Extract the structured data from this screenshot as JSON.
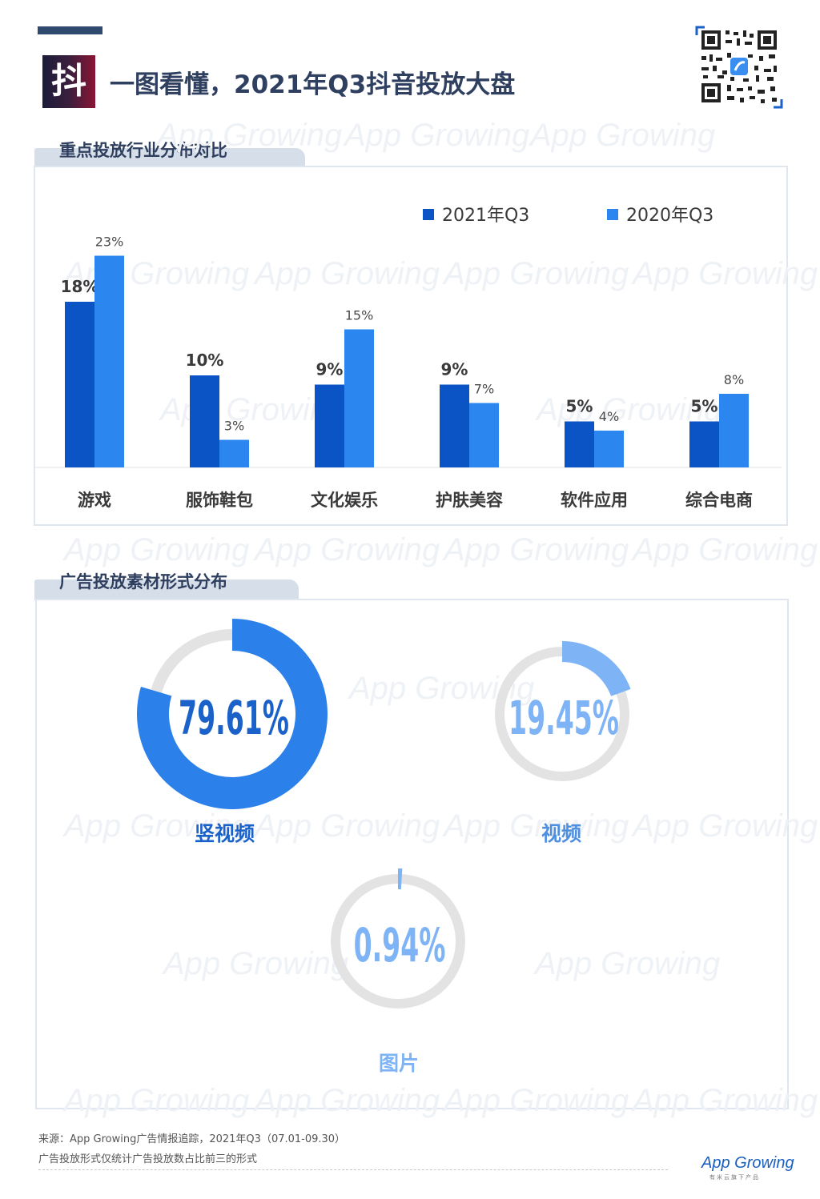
{
  "header": {
    "logo_char": "抖",
    "title": "一图看懂，2021年Q3抖音投放大盘"
  },
  "section1": {
    "title": "重点投放行业分布对比"
  },
  "section2": {
    "title": "广告投放素材形式分布"
  },
  "legend": [
    "2021年Q3",
    "2020年Q3"
  ],
  "colors": {
    "series_2021": "#0b54c6",
    "series_2020": "#2b86ef",
    "donut_main": "#2b80ea",
    "donut_light": "#7eb3f5",
    "track": "#e3e3e3",
    "label": "#1a62c9"
  },
  "chart_data": [
    {
      "type": "bar",
      "categories": [
        "游戏",
        "服饰鞋包",
        "文化娱乐",
        "护肤美容",
        "软件应用",
        "综合电商"
      ],
      "series": [
        {
          "name": "2021年Q3",
          "values": [
            18,
            10,
            9,
            9,
            5,
            5
          ],
          "labels": [
            "18%",
            "10%",
            "9%",
            "9%",
            "5%",
            "5%"
          ]
        },
        {
          "name": "2020年Q3",
          "values": [
            23,
            3,
            15,
            7,
            4,
            8
          ],
          "labels": [
            "23%",
            "3%",
            "15%",
            "7%",
            "4%",
            "8%"
          ]
        }
      ],
      "legend_position": "top-right",
      "ylim": [
        0,
        25
      ],
      "grid": false
    },
    {
      "type": "pie",
      "style": "donut",
      "slices": [
        {
          "label": "竖视频",
          "value": 79.61,
          "display": "79.61%"
        },
        {
          "label": "视频",
          "value": 19.45,
          "display": "19.45%"
        },
        {
          "label": "图片",
          "value": 0.94,
          "display": "0.94%"
        }
      ]
    }
  ],
  "footer": {
    "source": "来源：App Growing广告情报追踪，2021年Q3（07.01-09.30）",
    "note": "广告投放形式仅统计广告投放数占比前三的形式",
    "brand": "App Growing",
    "brand_tagline": "有米云旗下产品"
  },
  "watermark_text": "App Growing"
}
